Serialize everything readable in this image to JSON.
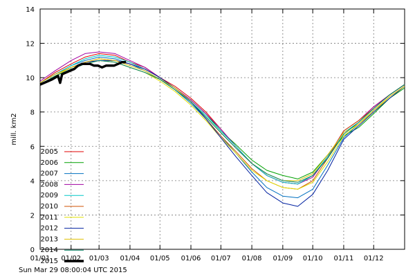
{
  "chart_data": {
    "type": "line",
    "ylabel": "mill. km2",
    "ylim": [
      0,
      14
    ],
    "yticks": [
      0,
      2,
      4,
      6,
      8,
      10,
      12,
      14
    ],
    "xlim": [
      0,
      365
    ],
    "xticks": [
      {
        "label": "01/01",
        "x": 0
      },
      {
        "label": "01/02",
        "x": 31
      },
      {
        "label": "01/03",
        "x": 59
      },
      {
        "label": "01/04",
        "x": 90
      },
      {
        "label": "01/05",
        "x": 120
      },
      {
        "label": "01/06",
        "x": 151
      },
      {
        "label": "01/07",
        "x": 181
      },
      {
        "label": "01/08",
        "x": 212
      },
      {
        "label": "01/09",
        "x": 243
      },
      {
        "label": "01/10",
        "x": 273
      },
      {
        "label": "01/11",
        "x": 304
      },
      {
        "label": "01/12",
        "x": 334
      }
    ],
    "grid": true,
    "legend_position": "bottom-left",
    "series": [
      {
        "name": "2005",
        "color": "#e00000",
        "x": [
          0,
          15,
          31,
          45,
          59,
          75,
          90,
          105,
          120,
          135,
          151,
          166,
          181,
          196,
          212,
          227,
          243,
          258,
          273,
          288,
          304,
          319,
          334,
          350,
          365
        ],
        "y": [
          9.7,
          10.3,
          10.8,
          11.2,
          11.4,
          11.3,
          10.9,
          10.6,
          10.0,
          9.5,
          8.8,
          8.0,
          7.0,
          6.0,
          5.0,
          4.3,
          3.9,
          3.8,
          4.3,
          5.4,
          6.9,
          7.5,
          8.3,
          9.0,
          9.6
        ]
      },
      {
        "name": "2006",
        "color": "#00a000",
        "x": [
          0,
          15,
          31,
          45,
          59,
          75,
          90,
          105,
          120,
          135,
          151,
          166,
          181,
          196,
          212,
          227,
          243,
          258,
          273,
          288,
          304,
          319,
          334,
          350,
          365
        ],
        "y": [
          9.6,
          10.1,
          10.5,
          10.8,
          11.0,
          10.9,
          10.6,
          10.3,
          9.9,
          9.4,
          8.7,
          7.9,
          6.9,
          6.1,
          5.2,
          4.6,
          4.3,
          4.1,
          4.5,
          5.5,
          6.6,
          7.1,
          7.9,
          8.8,
          9.4
        ]
      },
      {
        "name": "2007",
        "color": "#0070c0",
        "x": [
          0,
          15,
          31,
          45,
          59,
          75,
          90,
          105,
          120,
          135,
          151,
          166,
          181,
          196,
          212,
          227,
          243,
          258,
          273,
          288,
          304,
          319,
          334,
          350,
          365
        ],
        "y": [
          9.7,
          10.2,
          10.7,
          11.0,
          11.2,
          11.1,
          10.8,
          10.4,
          9.9,
          9.3,
          8.5,
          7.6,
          6.6,
          5.6,
          4.5,
          3.6,
          3.1,
          3.0,
          3.5,
          4.9,
          6.5,
          7.3,
          8.1,
          8.9,
          9.5
        ]
      },
      {
        "name": "2008",
        "color": "#a000a0",
        "x": [
          0,
          15,
          31,
          45,
          59,
          75,
          90,
          105,
          120,
          135,
          151,
          166,
          181,
          196,
          212,
          227,
          243,
          258,
          273,
          288,
          304,
          319,
          334,
          350,
          365
        ],
        "y": [
          9.8,
          10.4,
          11.0,
          11.4,
          11.5,
          11.4,
          11.0,
          10.6,
          10.0,
          9.4,
          8.7,
          7.9,
          7.0,
          6.0,
          5.0,
          4.3,
          3.9,
          3.8,
          4.2,
          5.4,
          6.9,
          7.5,
          8.3,
          9.0,
          9.6
        ]
      },
      {
        "name": "2009",
        "color": "#00c8c8",
        "x": [
          0,
          15,
          31,
          45,
          59,
          75,
          90,
          105,
          120,
          135,
          151,
          166,
          181,
          196,
          212,
          227,
          243,
          258,
          273,
          288,
          304,
          319,
          334,
          350,
          365
        ],
        "y": [
          9.7,
          10.2,
          10.7,
          11.1,
          11.3,
          11.2,
          10.9,
          10.5,
          10.0,
          9.4,
          8.6,
          7.8,
          6.9,
          6.0,
          5.0,
          4.3,
          3.9,
          3.8,
          4.3,
          5.4,
          6.8,
          7.4,
          8.2,
          9.0,
          9.6
        ]
      },
      {
        "name": "2010",
        "color": "#d05000",
        "x": [
          0,
          15,
          31,
          45,
          59,
          75,
          90,
          105,
          120,
          135,
          151,
          166,
          181,
          196,
          212,
          227,
          243,
          258,
          273,
          288,
          304,
          319,
          334,
          350,
          365
        ],
        "y": [
          9.6,
          10.1,
          10.6,
          10.9,
          11.1,
          11.0,
          10.8,
          10.5,
          10.0,
          9.4,
          8.6,
          7.6,
          6.6,
          5.7,
          4.7,
          4.0,
          3.6,
          3.5,
          4.0,
          5.3,
          6.9,
          7.5,
          8.2,
          9.0,
          9.6
        ]
      },
      {
        "name": "2011",
        "color": "#e0e000",
        "x": [
          0,
          15,
          31,
          45,
          59,
          75,
          90,
          105,
          120,
          135,
          151,
          166,
          181,
          196,
          212,
          227,
          243,
          258,
          273,
          288,
          304,
          319,
          334,
          350,
          365
        ],
        "y": [
          9.6,
          10.1,
          10.6,
          10.8,
          11.0,
          10.9,
          10.6,
          10.3,
          9.8,
          9.2,
          8.4,
          7.5,
          6.5,
          5.6,
          4.6,
          4.0,
          3.6,
          3.5,
          3.9,
          5.1,
          6.6,
          7.3,
          8.0,
          8.9,
          9.5
        ]
      },
      {
        "name": "2012",
        "color": "#0020a0",
        "x": [
          0,
          15,
          31,
          45,
          59,
          75,
          90,
          105,
          120,
          135,
          151,
          166,
          181,
          196,
          212,
          227,
          243,
          258,
          273,
          288,
          304,
          319,
          334,
          350,
          365
        ],
        "y": [
          9.7,
          10.2,
          10.6,
          10.9,
          11.0,
          11.0,
          10.8,
          10.5,
          10.0,
          9.4,
          8.6,
          7.6,
          6.5,
          5.4,
          4.3,
          3.3,
          2.7,
          2.5,
          3.2,
          4.6,
          6.4,
          7.2,
          8.0,
          8.8,
          9.5
        ]
      },
      {
        "name": "2013",
        "color": "#e0c000",
        "x": [
          0,
          15,
          31,
          45,
          59,
          75,
          90,
          105,
          120,
          135,
          151,
          166,
          181,
          196,
          212,
          227,
          243,
          258,
          273,
          288,
          304,
          319,
          334,
          350,
          365
        ],
        "y": [
          9.7,
          10.2,
          10.6,
          10.9,
          11.1,
          11.0,
          10.7,
          10.4,
          9.9,
          9.4,
          8.6,
          7.7,
          6.8,
          5.9,
          5.0,
          4.4,
          4.0,
          4.0,
          4.4,
          5.5,
          6.8,
          7.3,
          8.1,
          8.9,
          9.5
        ]
      },
      {
        "name": "2014",
        "color": "#008060",
        "x": [
          0,
          15,
          31,
          45,
          59,
          75,
          90,
          105,
          120,
          135,
          151,
          166,
          181,
          196,
          212,
          227,
          243,
          258,
          273,
          288,
          304,
          319,
          334,
          350,
          365
        ],
        "y": [
          9.6,
          10.1,
          10.5,
          10.8,
          11.0,
          10.9,
          10.6,
          10.3,
          9.9,
          9.3,
          8.6,
          7.7,
          6.8,
          5.9,
          5.0,
          4.4,
          4.0,
          3.9,
          4.3,
          5.3,
          6.7,
          7.4,
          8.2,
          9.0,
          9.6
        ]
      },
      {
        "name": "2015",
        "color": "#000000",
        "bold": true,
        "x": [
          0,
          4,
          8,
          12,
          15,
          18,
          20,
          22,
          26,
          30,
          34,
          38,
          42,
          46,
          50,
          54,
          58,
          62,
          66,
          70,
          74,
          78,
          82,
          86
        ],
        "y": [
          9.6,
          9.7,
          9.8,
          9.9,
          10.0,
          10.1,
          9.7,
          10.2,
          10.3,
          10.4,
          10.5,
          10.7,
          10.8,
          10.8,
          10.8,
          10.7,
          10.7,
          10.6,
          10.7,
          10.7,
          10.7,
          10.8,
          10.9,
          10.9
        ]
      }
    ]
  },
  "footer": {
    "timestamp": "Sun Mar 29 08:00:04 UTC 2015"
  }
}
